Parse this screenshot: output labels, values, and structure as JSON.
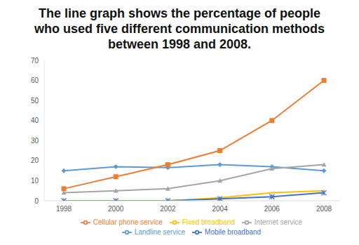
{
  "chart_data": {
    "type": "line",
    "title": "The line graph shows the percentage of people who used five different communication methods between 1998 and 2008.",
    "categories": [
      "1998",
      "2000",
      "2002",
      "2004",
      "2006",
      "2008"
    ],
    "ylim": [
      0,
      70
    ],
    "yticks": [
      0,
      10,
      20,
      30,
      40,
      50,
      60,
      70
    ],
    "grid": false,
    "legend": "bottom",
    "series": [
      {
        "name": "Landline service",
        "color": "#5b9bd5",
        "marker": "diamond",
        "values": [
          15,
          17,
          16.5,
          18,
          17,
          15
        ]
      },
      {
        "name": "Cellular phone service",
        "color": "#ed7d31",
        "marker": "square",
        "values": [
          6,
          12,
          18,
          25,
          40,
          60
        ]
      },
      {
        "name": "Internet service",
        "color": "#a5a5a5",
        "marker": "triangle",
        "values": [
          4,
          5,
          6,
          10,
          16,
          18
        ]
      },
      {
        "name": "Fixed broadband",
        "color": "#ffc000",
        "marker": "none",
        "values": [
          0,
          0,
          0,
          1.5,
          4,
          5
        ]
      },
      {
        "name": "Mobile broadband",
        "color": "#4472c4",
        "marker": "star",
        "values": [
          0,
          0,
          0,
          1,
          2,
          4
        ]
      }
    ]
  }
}
